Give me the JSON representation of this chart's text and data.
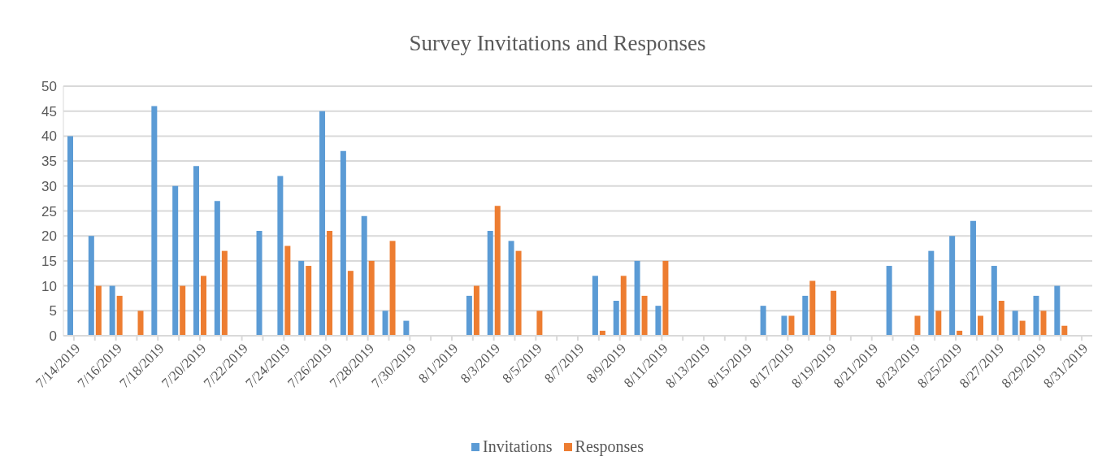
{
  "chart_data": {
    "type": "bar",
    "title": "Survey Invitations and Responses",
    "categories": [
      "7/14/2019",
      null,
      "7/16/2019",
      null,
      "7/18/2019",
      null,
      "7/20/2019",
      null,
      "7/22/2019",
      null,
      "7/24/2019",
      null,
      "7/26/2019",
      null,
      "7/28/2019",
      null,
      "7/30/2019",
      null,
      "8/1/2019",
      null,
      "8/3/2019",
      null,
      "8/5/2019",
      null,
      "8/7/2019",
      null,
      "8/9/2019",
      null,
      "8/11/2019",
      null,
      "8/13/2019",
      null,
      "8/15/2019",
      null,
      "8/17/2019",
      null,
      "8/19/2019",
      null,
      "8/21/2019",
      null,
      "8/23/2019",
      null,
      "8/25/2019",
      null,
      "8/27/2019",
      null,
      "8/29/2019",
      null,
      "8/31/2019"
    ],
    "series": [
      {
        "name": "Invitations",
        "color": "#5b9bd5",
        "values": [
          40,
          20,
          10,
          null,
          46,
          30,
          34,
          27,
          null,
          21,
          32,
          15,
          45,
          37,
          24,
          5,
          3,
          null,
          null,
          8,
          21,
          19,
          null,
          null,
          null,
          12,
          7,
          15,
          6,
          null,
          null,
          null,
          null,
          6,
          4,
          8,
          null,
          null,
          null,
          14,
          null,
          17,
          20,
          23,
          14,
          5,
          8,
          10,
          null
        ]
      },
      {
        "name": "Responses",
        "color": "#ed7d31",
        "values": [
          null,
          10,
          8,
          5,
          null,
          10,
          12,
          17,
          null,
          null,
          18,
          14,
          21,
          13,
          15,
          19,
          null,
          null,
          null,
          10,
          26,
          17,
          5,
          null,
          null,
          1,
          12,
          8,
          15,
          null,
          null,
          null,
          null,
          null,
          4,
          11,
          9,
          null,
          null,
          null,
          4,
          5,
          1,
          4,
          7,
          3,
          5,
          2,
          null
        ]
      }
    ],
    "ylim": [
      0,
      50
    ],
    "yticks": [
      0,
      5,
      10,
      15,
      20,
      25,
      30,
      35,
      40,
      45,
      50
    ],
    "grid": "y",
    "legend": "bottom"
  }
}
